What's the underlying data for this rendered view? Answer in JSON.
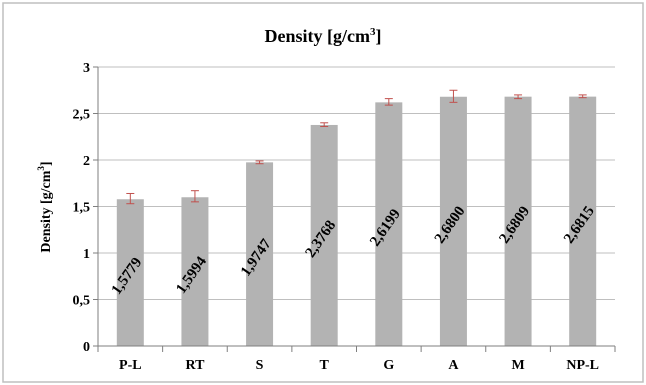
{
  "chart_data": {
    "type": "bar",
    "title_main": "Density [g/cm",
    "title_sup": "3",
    "title_end": "]",
    "ylabel_main": "Density [g/cm",
    "ylabel_sup": "3",
    "ylabel_end": "]",
    "xlabel": "",
    "ylim": [
      0,
      3
    ],
    "yticks": [
      0,
      0.5,
      1,
      1.5,
      2,
      2.5,
      3
    ],
    "ytick_labels": [
      "0",
      "0,5",
      "1",
      "1,5",
      "2",
      "2,5",
      "3"
    ],
    "grid": true,
    "legend": "none",
    "categories": [
      "P-L",
      "RT",
      "S",
      "T",
      "G",
      "A",
      "M",
      "NP-L"
    ],
    "values": [
      1.5779,
      1.5994,
      1.9747,
      2.3768,
      2.6199,
      2.68,
      2.6809,
      2.6815
    ],
    "value_labels": [
      "1,5779",
      "1,5994",
      "1,9747",
      "2,3768",
      "2,6199",
      "2,6800",
      "2,6809",
      "2,6815"
    ],
    "error_bars": [
      [
        1.53,
        1.64
      ],
      [
        1.55,
        1.67
      ],
      [
        1.96,
        1.99
      ],
      [
        2.36,
        2.4
      ],
      [
        2.59,
        2.66
      ],
      [
        2.62,
        2.75
      ],
      [
        2.66,
        2.7
      ],
      [
        2.67,
        2.7
      ]
    ],
    "colors": {
      "bar": "#b3b3b3",
      "error": "#c0504d",
      "grid": "#bfbfbf",
      "axis": "#7f7f7f",
      "text": "#000000",
      "frame": "#bfbfbf"
    }
  }
}
